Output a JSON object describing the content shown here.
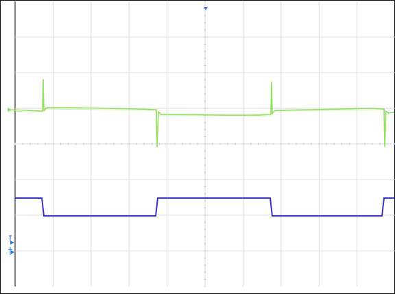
{
  "scope": {
    "grid": {
      "divisions_x": 10,
      "divisions_y": 8,
      "color": "#d9d9d9",
      "center_dot_color": "#c7c7c7"
    },
    "colors": {
      "frame": "#000000",
      "channel1": "#8fe05a",
      "channel2": "#3333cc",
      "marker": "#2e7bd6",
      "background": "#ffffff"
    },
    "markers": {
      "trigger_position": {
        "icon": "trigger-arrow-icon"
      },
      "channel1_ground": {
        "icon": "channel-1-ground-marker-icon"
      },
      "channel2_ground": {
        "icon": "channel-2-ground-marker-icon"
      },
      "trigger_level": {
        "icon": "trigger-level-marker-icon"
      }
    }
  }
}
